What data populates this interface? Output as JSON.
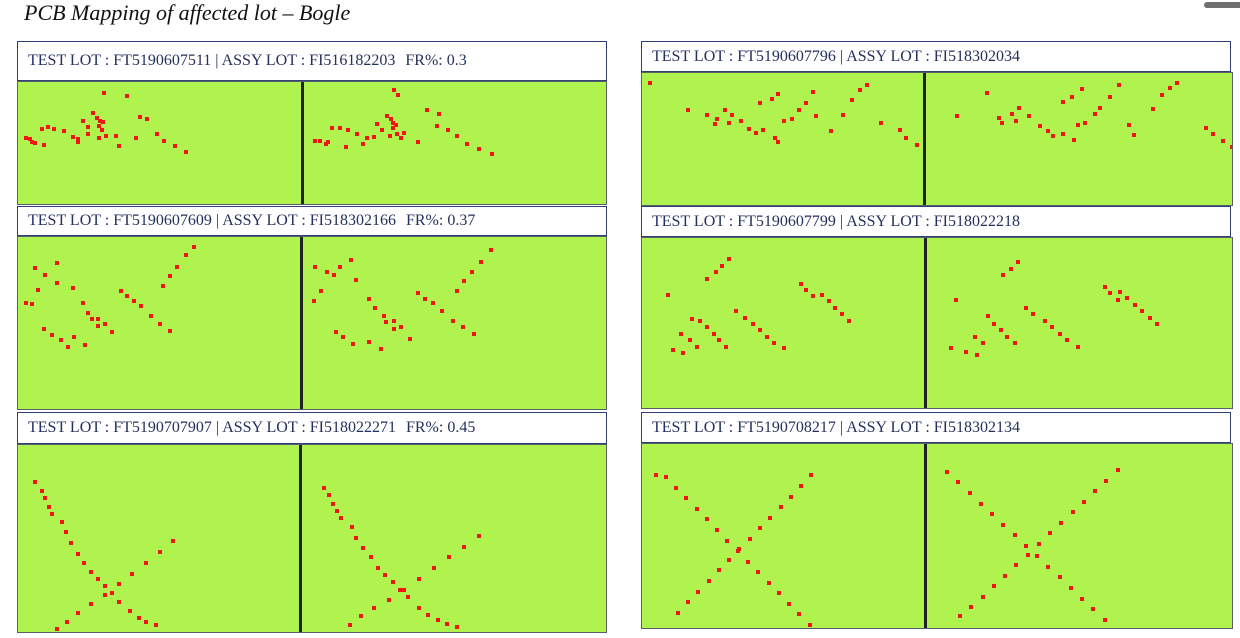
{
  "title": "PCB Mapping of affected lot – Bogle",
  "panels": [
    {
      "test_lot_label": "TEST LOT : FT5190607511",
      "assy_lot_label": "ASSY LOT : FI516182203",
      "fr_label": "FR%: 0.3",
      "fail_dots": [
        [
          22,
          74
        ],
        [
          25,
          72
        ],
        [
          29,
          70
        ],
        [
          33,
          72
        ],
        [
          36,
          73
        ],
        [
          42,
          75
        ],
        [
          48,
          78
        ],
        [
          52,
          82
        ],
        [
          58,
          88
        ],
        [
          62,
          90
        ],
        [
          64,
          92
        ],
        [
          92,
          6
        ],
        [
          94,
          10
        ],
        [
          96,
          14
        ],
        [
          82,
          46
        ],
        [
          84,
          50
        ],
        [
          86,
          54
        ],
        [
          88,
          56
        ],
        [
          90,
          60
        ],
        [
          91,
          64
        ],
        [
          93,
          62
        ],
        [
          94,
          66
        ],
        [
          88,
          68
        ],
        [
          90,
          72
        ],
        [
          92,
          75
        ],
        [
          95,
          82
        ],
        [
          97,
          86
        ],
        [
          87,
          86
        ],
        [
          89,
          90
        ],
        [
          99,
          90
        ],
        [
          10,
          96
        ],
        [
          12,
          94
        ],
        [
          14,
          98
        ],
        [
          18,
          100
        ],
        [
          4,
          90
        ],
        [
          6,
          94
        ],
        [
          8,
          92
        ],
        [
          20,
          96
        ],
        [
          24,
          102
        ],
        [
          40,
          106
        ],
        [
          121,
          16
        ],
        [
          127,
          40
        ],
        [
          136,
          52
        ],
        [
          140,
          48
        ],
        [
          144,
          56
        ],
        [
          138,
          68
        ],
        [
          132,
          90
        ],
        [
          150,
          76
        ],
        [
          156,
          82
        ],
        [
          159,
          86
        ],
        [
          164,
          94
        ],
        [
          170,
          100
        ],
        [
          177,
          104
        ],
        [
          183,
          108
        ],
        [
          190,
          114
        ],
        [
          197,
          118
        ],
        [
          112,
          104
        ],
        [
          117,
          96
        ],
        [
          108,
          86
        ],
        [
          102,
          80
        ],
        [
          70,
          60
        ],
        [
          73,
          65
        ],
        [
          76,
          70
        ],
        [
          79,
          75
        ],
        [
          76,
          82
        ],
        [
          70,
          88
        ],
        [
          64,
          96
        ],
        [
          58,
          100
        ]
      ]
    },
    {
      "test_lot_label": "TEST LOT : FT5190607796",
      "assy_lot_label": "ASSY LOT : FI518302034",
      "fr_label": "",
      "fail_dots": [
        [
          3,
          8
        ],
        [
          28,
          62
        ],
        [
          48,
          52
        ],
        [
          60,
          24
        ],
        [
          70,
          60
        ],
        [
          72,
          64
        ],
        [
          82,
          66
        ],
        [
          90,
          70
        ],
        [
          96,
          72
        ],
        [
          76,
          72
        ],
        [
          80,
          74
        ],
        [
          86,
          58
        ],
        [
          92,
          52
        ],
        [
          94,
          48
        ],
        [
          100,
          60
        ],
        [
          104,
          62
        ],
        [
          110,
          70
        ],
        [
          116,
          78
        ],
        [
          120,
          82
        ],
        [
          124,
          86
        ],
        [
          128,
          88
        ],
        [
          130,
          94
        ],
        [
          136,
          84
        ],
        [
          140,
          90
        ],
        [
          150,
          96
        ],
        [
          152,
          100
        ],
        [
          154,
          104
        ],
        [
          156,
          76
        ],
        [
          160,
          70
        ],
        [
          164,
          72
        ],
        [
          170,
          66
        ],
        [
          174,
          58
        ],
        [
          178,
          52
        ],
        [
          180,
          48
        ],
        [
          186,
          40
        ],
        [
          190,
          30
        ],
        [
          194,
          22
        ],
        [
          200,
          12
        ],
        [
          198,
          62
        ],
        [
          210,
          76
        ],
        [
          216,
          86
        ],
        [
          216,
          92
        ],
        [
          230,
          60
        ],
        [
          236,
          50
        ],
        [
          240,
          36
        ],
        [
          246,
          28
        ],
        [
          250,
          20
        ],
        [
          254,
          16
        ],
        [
          258,
          12
        ],
        [
          262,
          8
        ],
        [
          274,
          72
        ],
        [
          292,
          80
        ],
        [
          296,
          84
        ],
        [
          300,
          90
        ],
        [
          304,
          96
        ],
        [
          310,
          102
        ],
        [
          316,
          108
        ],
        [
          320,
          112
        ],
        [
          132,
          40
        ],
        [
          140,
          38
        ],
        [
          146,
          34
        ],
        [
          150,
          30
        ],
        [
          154,
          26
        ],
        [
          160,
          18
        ]
      ]
    },
    {
      "test_lot_label": "TEST LOT : FT5190607609",
      "assy_lot_label": "ASSY LOT : FI518302166",
      "fr_label": "FR%: 0.37",
      "fail_dots": [
        [
          3,
          74
        ],
        [
          6,
          72
        ],
        [
          10,
          76
        ],
        [
          14,
          60
        ],
        [
          18,
          58
        ],
        [
          28,
          40
        ],
        [
          40,
          50
        ],
        [
          52,
          46
        ],
        [
          58,
          56
        ],
        [
          66,
          70
        ],
        [
          70,
          74
        ],
        [
          72,
          80
        ],
        [
          76,
          86
        ],
        [
          82,
          90
        ],
        [
          88,
          94
        ],
        [
          92,
          96
        ],
        [
          96,
          100
        ],
        [
          100,
          104
        ],
        [
          104,
          110
        ],
        [
          110,
          118
        ],
        [
          114,
          60
        ],
        [
          118,
          62
        ],
        [
          122,
          66
        ],
        [
          126,
          70
        ],
        [
          130,
          72
        ],
        [
          134,
          74
        ],
        [
          138,
          78
        ],
        [
          144,
          84
        ],
        [
          150,
          90
        ],
        [
          156,
          96
        ],
        [
          160,
          100
        ],
        [
          166,
          104
        ],
        [
          172,
          108
        ],
        [
          178,
          112
        ],
        [
          24,
          106
        ],
        [
          30,
          110
        ],
        [
          34,
          114
        ],
        [
          38,
          116
        ],
        [
          44,
          120
        ],
        [
          48,
          124
        ],
        [
          52,
          128
        ],
        [
          160,
          60
        ],
        [
          164,
          54
        ],
        [
          168,
          48
        ],
        [
          172,
          42
        ],
        [
          176,
          36
        ],
        [
          180,
          30
        ],
        [
          186,
          24
        ],
        [
          190,
          16
        ],
        [
          196,
          10
        ],
        [
          200,
          6
        ],
        [
          8,
          30
        ],
        [
          14,
          32
        ],
        [
          20,
          36
        ],
        [
          26,
          40
        ],
        [
          34,
          30
        ],
        [
          40,
          26
        ],
        [
          46,
          22
        ],
        [
          60,
          116
        ],
        [
          66,
          122
        ],
        [
          72,
          126
        ],
        [
          78,
          130
        ],
        [
          80,
          94
        ],
        [
          84,
          98
        ],
        [
          88,
          102
        ],
        [
          92,
          106
        ]
      ]
    },
    {
      "test_lot_label": "TEST LOT : FT5190607799",
      "assy_lot_label": "ASSY LOT : FI518022218",
      "fr_label": "",
      "fail_dots": [
        [
          24,
          64
        ],
        [
          26,
          70
        ],
        [
          52,
          94
        ],
        [
          60,
          90
        ],
        [
          62,
          96
        ],
        [
          66,
          100
        ],
        [
          70,
          104
        ],
        [
          74,
          108
        ],
        [
          78,
          112
        ],
        [
          80,
          116
        ],
        [
          84,
          120
        ],
        [
          88,
          124
        ],
        [
          92,
          128
        ],
        [
          100,
          80
        ],
        [
          104,
          84
        ],
        [
          108,
          88
        ],
        [
          114,
          92
        ],
        [
          120,
          96
        ],
        [
          124,
          100
        ],
        [
          128,
          104
        ],
        [
          132,
          108
        ],
        [
          136,
          112
        ],
        [
          140,
          116
        ],
        [
          144,
          120
        ],
        [
          148,
          124
        ],
        [
          156,
          128
        ],
        [
          160,
          130
        ],
        [
          200,
          60
        ],
        [
          204,
          64
        ],
        [
          208,
          68
        ],
        [
          212,
          72
        ],
        [
          216,
          76
        ],
        [
          220,
          80
        ],
        [
          224,
          84
        ],
        [
          228,
          88
        ],
        [
          232,
          92
        ],
        [
          236,
          96
        ],
        [
          240,
          100
        ],
        [
          180,
          50
        ],
        [
          184,
          54
        ],
        [
          186,
          58
        ],
        [
          190,
          62
        ],
        [
          194,
          66
        ],
        [
          198,
          70
        ],
        [
          40,
          112
        ],
        [
          46,
          116
        ],
        [
          50,
          120
        ],
        [
          54,
          124
        ],
        [
          58,
          128
        ],
        [
          20,
          130
        ],
        [
          30,
          132
        ],
        [
          36,
          134
        ],
        [
          42,
          136
        ],
        [
          48,
          138
        ],
        [
          70,
          44
        ],
        [
          76,
          40
        ],
        [
          80,
          36
        ],
        [
          84,
          32
        ],
        [
          88,
          28
        ],
        [
          92,
          24
        ],
        [
          96,
          20
        ]
      ]
    },
    {
      "test_lot_label": "TEST LOT : FT5190707907",
      "assy_lot_label": "ASSY LOT : FI518022271",
      "fr_label": "FR%: 0.45",
      "fail_dots": [
        [
          14,
          36
        ],
        [
          18,
          42
        ],
        [
          22,
          46
        ],
        [
          24,
          50
        ],
        [
          26,
          54
        ],
        [
          28,
          60
        ],
        [
          30,
          64
        ],
        [
          32,
          68
        ],
        [
          34,
          72
        ],
        [
          36,
          76
        ],
        [
          46,
          80
        ],
        [
          48,
          86
        ],
        [
          50,
          92
        ],
        [
          52,
          98
        ],
        [
          56,
          104
        ],
        [
          60,
          110
        ],
        [
          64,
          116
        ],
        [
          68,
          120
        ],
        [
          72,
          126
        ],
        [
          76,
          132
        ],
        [
          80,
          136
        ],
        [
          84,
          140
        ],
        [
          88,
          144
        ],
        [
          92,
          148
        ],
        [
          96,
          152
        ],
        [
          100,
          156
        ],
        [
          104,
          160
        ],
        [
          108,
          164
        ],
        [
          112,
          170
        ],
        [
          120,
          176
        ],
        [
          126,
          180
        ],
        [
          130,
          184
        ],
        [
          136,
          188
        ],
        [
          140,
          190
        ],
        [
          144,
          192
        ],
        [
          150,
          194
        ],
        [
          156,
          196
        ],
        [
          160,
          198
        ],
        [
          40,
          200
        ],
        [
          46,
          196
        ],
        [
          52,
          192
        ],
        [
          58,
          186
        ],
        [
          64,
          182
        ],
        [
          72,
          176
        ],
        [
          80,
          172
        ],
        [
          88,
          168
        ],
        [
          96,
          162
        ],
        [
          104,
          156
        ],
        [
          112,
          150
        ],
        [
          120,
          144
        ],
        [
          128,
          138
        ],
        [
          136,
          132
        ],
        [
          144,
          126
        ],
        [
          152,
          120
        ],
        [
          160,
          114
        ],
        [
          168,
          108
        ],
        [
          176,
          102
        ],
        [
          184,
          96
        ]
      ]
    },
    {
      "test_lot_label": "TEST LOT : FT5190708217",
      "assy_lot_label": "ASSY LOT : FI518302134",
      "fr_label": "",
      "fail_dots": [
        [
          10,
          30
        ],
        [
          16,
          26
        ],
        [
          22,
          32
        ],
        [
          28,
          38
        ],
        [
          34,
          44
        ],
        [
          40,
          50
        ],
        [
          46,
          56
        ],
        [
          52,
          62
        ],
        [
          58,
          68
        ],
        [
          64,
          74
        ],
        [
          70,
          80
        ],
        [
          76,
          86
        ],
        [
          82,
          92
        ],
        [
          88,
          98
        ],
        [
          94,
          104
        ],
        [
          100,
          110
        ],
        [
          106,
          116
        ],
        [
          112,
          122
        ],
        [
          118,
          128
        ],
        [
          124,
          134
        ],
        [
          130,
          140
        ],
        [
          136,
          146
        ],
        [
          142,
          152
        ],
        [
          148,
          158
        ],
        [
          154,
          164
        ],
        [
          160,
          170
        ],
        [
          166,
          176
        ],
        [
          172,
          182
        ],
        [
          178,
          188
        ],
        [
          184,
          194
        ],
        [
          190,
          200
        ],
        [
          30,
          190
        ],
        [
          36,
          186
        ],
        [
          42,
          180
        ],
        [
          48,
          174
        ],
        [
          54,
          168
        ],
        [
          60,
          162
        ],
        [
          66,
          156
        ],
        [
          72,
          150
        ],
        [
          78,
          144
        ],
        [
          84,
          138
        ],
        [
          90,
          132
        ],
        [
          96,
          126
        ],
        [
          102,
          120
        ],
        [
          108,
          114
        ],
        [
          114,
          108
        ],
        [
          120,
          102
        ],
        [
          126,
          96
        ],
        [
          132,
          90
        ],
        [
          138,
          84
        ],
        [
          144,
          78
        ],
        [
          150,
          72
        ],
        [
          156,
          66
        ],
        [
          162,
          60
        ],
        [
          168,
          54
        ],
        [
          174,
          48
        ],
        [
          180,
          42
        ],
        [
          186,
          36
        ],
        [
          192,
          30
        ],
        [
          198,
          24
        ]
      ]
    }
  ]
}
